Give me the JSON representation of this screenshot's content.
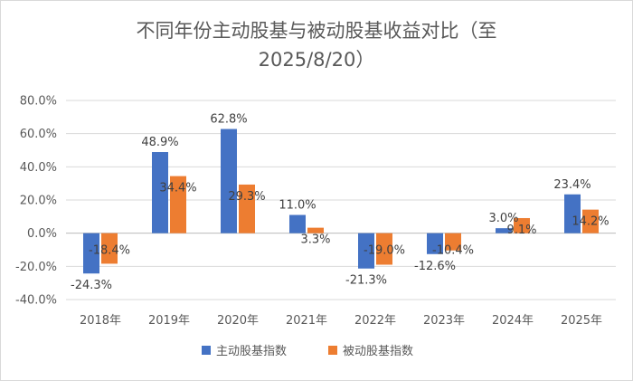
{
  "chart_data": {
    "type": "bar",
    "title_line1": "不同年份主动股基与被动股基收益对比（至",
    "title_line2": "2025/8/20）",
    "categories": [
      "2018年",
      "2019年",
      "2020年",
      "2021年",
      "2022年",
      "2023年",
      "2024年",
      "2025年"
    ],
    "series": [
      {
        "name": "主动股基指数",
        "color": "#4472C4",
        "values": [
          -24.3,
          48.9,
          62.8,
          11.0,
          -21.3,
          -12.6,
          3.0,
          23.4
        ],
        "labels": [
          "-24.3%",
          "48.9%",
          "62.8%",
          "11.0%",
          "-21.3%",
          "-12.6%",
          "3.0%",
          "23.4%"
        ]
      },
      {
        "name": "被动股基指数",
        "color": "#ED7D31",
        "values": [
          -18.4,
          34.4,
          29.3,
          3.3,
          -19.0,
          -10.4,
          9.1,
          14.2
        ],
        "labels": [
          "-18.4%",
          "34.4%",
          "29.3%",
          "3.3%",
          "-19.0%",
          "-10.4%",
          "9.1%",
          "14.2%"
        ]
      }
    ],
    "yticks": [
      "-40.0%",
      "-20.0%",
      "0.0%",
      "20.0%",
      "40.0%",
      "60.0%",
      "80.0%"
    ],
    "ylim": [
      -40,
      80
    ],
    "grid": true,
    "legend": "bottom"
  }
}
